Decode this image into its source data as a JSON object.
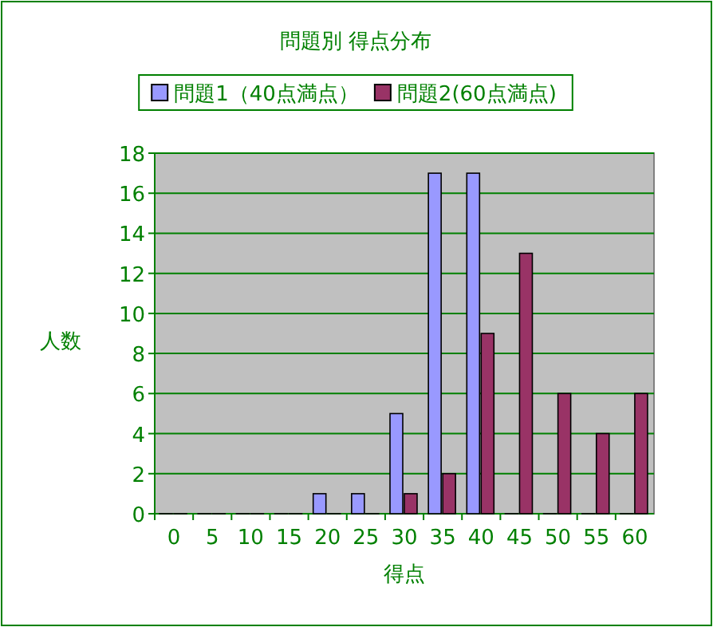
{
  "chart_data": {
    "type": "bar",
    "title": "問題別 得点分布",
    "xlabel": "得点",
    "ylabel": "人数",
    "categories": [
      "0",
      "5",
      "10",
      "15",
      "20",
      "25",
      "30",
      "35",
      "40",
      "45",
      "50",
      "55",
      "60"
    ],
    "series": [
      {
        "name": "問題1（40点満点）",
        "color": "#9999ff",
        "values": [
          0,
          0,
          0,
          0,
          1,
          1,
          5,
          17,
          17,
          0,
          0,
          0,
          0
        ]
      },
      {
        "name": "問題2(60点満点)",
        "color": "#993366",
        "values": [
          0,
          0,
          0,
          0,
          0,
          0,
          1,
          2,
          9,
          13,
          6,
          4,
          6
        ]
      }
    ],
    "ylim": [
      0,
      18
    ],
    "yticks": [
      0,
      2,
      4,
      6,
      8,
      10,
      12,
      14,
      16,
      18
    ],
    "grid": "y",
    "legend": "top"
  }
}
